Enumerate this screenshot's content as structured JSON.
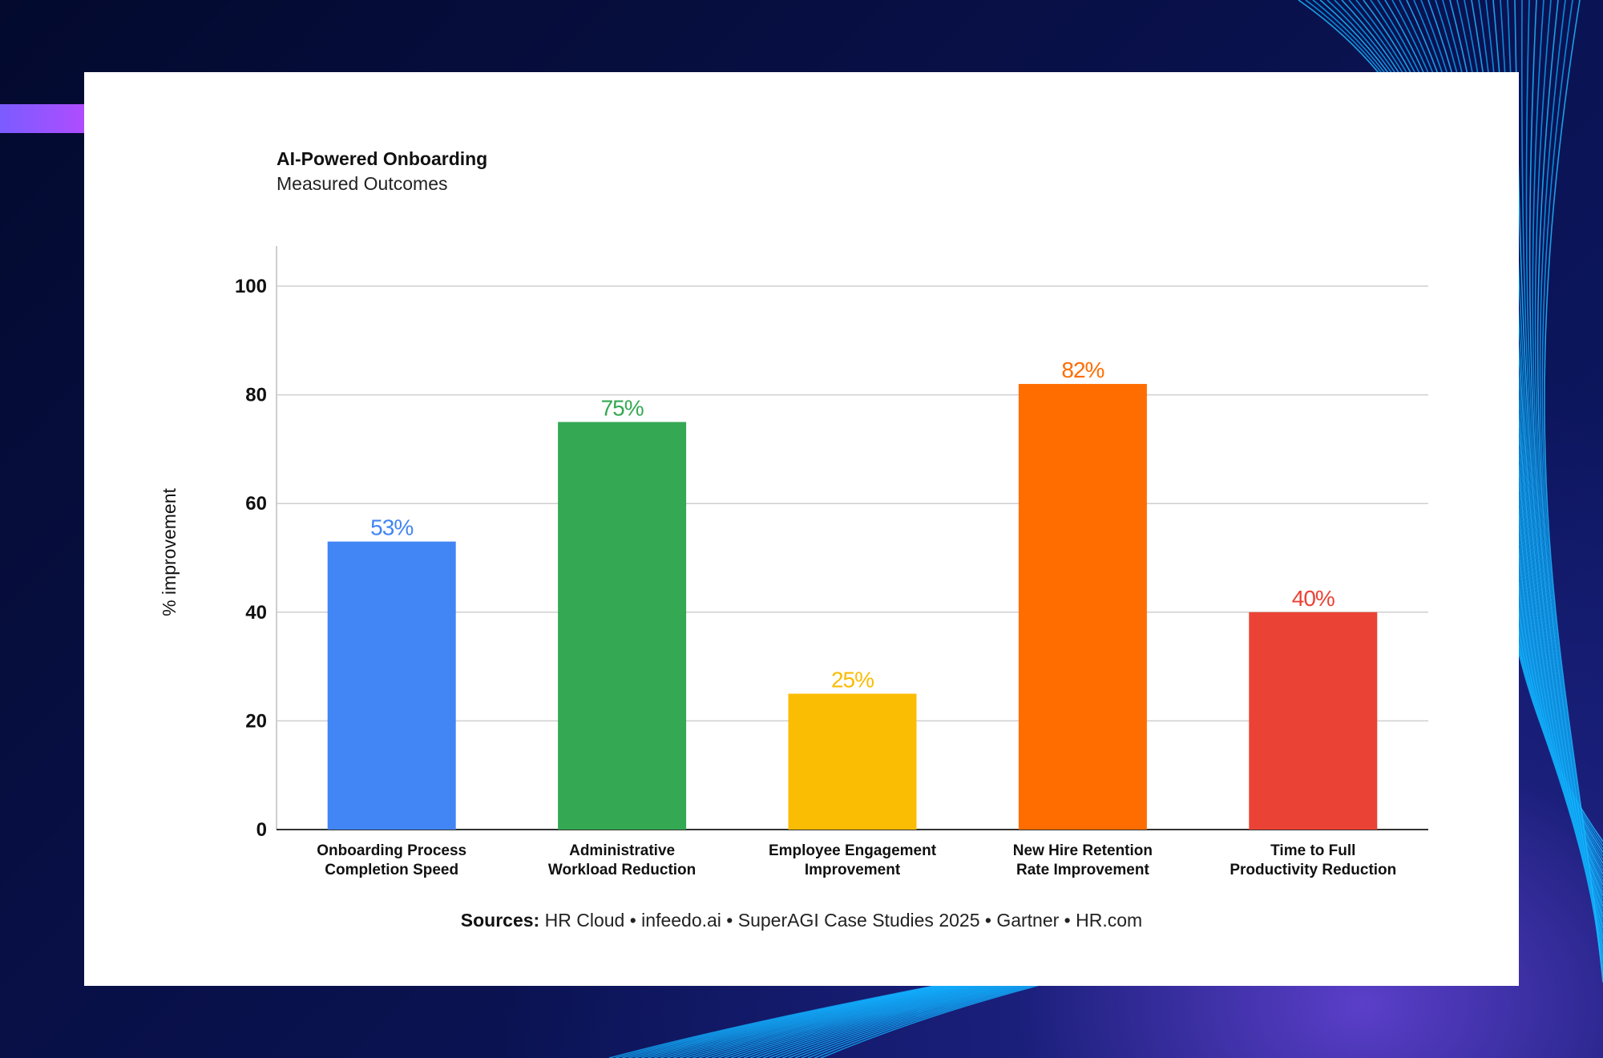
{
  "chart_data": {
    "type": "bar",
    "title": "AI-Powered Onboarding",
    "subtitle": "Measured Outcomes",
    "ylabel": "% improvement",
    "xlabel": "",
    "ylim": [
      0,
      100
    ],
    "yticks": [
      "0",
      "20",
      "40",
      "60",
      "80",
      "100"
    ],
    "grid": true,
    "categories": [
      [
        "Onboarding Process",
        "Completion Speed"
      ],
      [
        "Administrative",
        "Workload Reduction"
      ],
      [
        "Employee Engagement",
        "Improvement"
      ],
      [
        "New Hire Retention",
        "Rate Improvement"
      ],
      [
        "Time to Full",
        "Productivity Reduction"
      ]
    ],
    "values": [
      53,
      75,
      25,
      82,
      40
    ],
    "value_labels": [
      "53%",
      "75%",
      "25%",
      "82%",
      "40%"
    ],
    "colors": [
      "#4285f4",
      "#34a853",
      "#fbbc04",
      "#ff6d00",
      "#ea4335"
    ]
  },
  "sources": {
    "label": "Sources:",
    "text": " HR Cloud • infeedo.ai • SuperAGI Case Studies 2025 • Gartner • HR.com"
  }
}
